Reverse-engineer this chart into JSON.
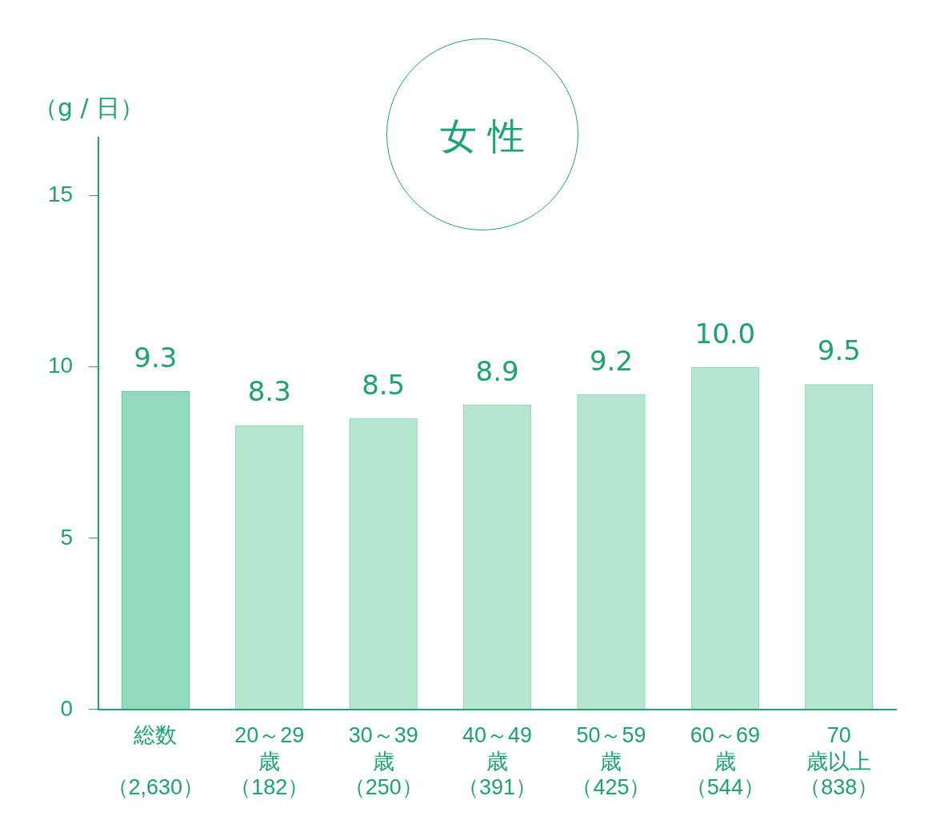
{
  "chart_data": {
    "type": "bar",
    "title": "女 性",
    "ylabel": "（g / 日）",
    "categories": [
      "総数（2,630）",
      "20～29歳（182）",
      "30～39歳（250）",
      "40～49歳（391）",
      "50～59歳（425）",
      "60～69歳（544）",
      "70歳以上（838）"
    ],
    "values": [
      9.3,
      8.3,
      8.5,
      8.9,
      9.2,
      10.0,
      9.5
    ],
    "value_labels": [
      "9.3",
      "8.3",
      "8.5",
      "8.9",
      "9.2",
      "10.0",
      "9.5"
    ],
    "colors": [
      "#5cc89c",
      "#8fd9b9",
      "#8fd9b9",
      "#8fd9b9",
      "#8fd9b9",
      "#8fd9b9",
      "#8fd9b9"
    ],
    "ylim": [
      0,
      16.7
    ],
    "yticks": [
      0,
      5,
      10,
      15
    ],
    "grid": false
  }
}
